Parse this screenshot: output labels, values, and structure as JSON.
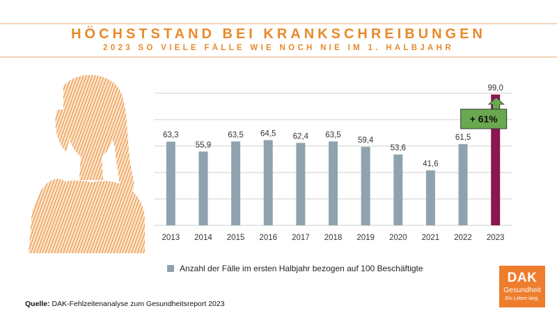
{
  "header": {
    "title": "HÖCHSTSTAND BEI KRANKSCHREIBUNGEN",
    "subtitle": "2023 SO VIELE FÄLLE WIE NOCH NIE IM 1. HALBJAHR"
  },
  "chart_data": {
    "type": "bar",
    "categories": [
      "2013",
      "2014",
      "2015",
      "2016",
      "2017",
      "2018",
      "2019",
      "2020",
      "2021",
      "2022",
      "2023"
    ],
    "values": [
      63.3,
      55.9,
      63.5,
      64.5,
      62.4,
      63.5,
      59.4,
      53.6,
      41.6,
      61.5,
      99.0
    ],
    "value_labels": [
      "63,3",
      "55,9",
      "63,5",
      "64,5",
      "62,4",
      "63,5",
      "59,4",
      "53,6",
      "41,6",
      "61,5",
      "99,0"
    ],
    "series": [
      {
        "name": "Anzahl der Fälle im ersten Halbjahr bezogen auf 100 Beschäftigte",
        "values": [
          63.3,
          55.9,
          63.5,
          64.5,
          62.4,
          63.5,
          59.4,
          53.6,
          41.6,
          61.5,
          99.0
        ]
      }
    ],
    "highlight_index": 10,
    "annotation": "+ 61%",
    "ylim": [
      0,
      100
    ],
    "grid": true,
    "colors": {
      "bar": "#8ea3ad",
      "highlight": "#8c1650",
      "annotation_bg": "#6aa84f",
      "grid": "#cfcfcf"
    }
  },
  "legend": {
    "label": "Anzahl der Fälle im ersten Halbjahr bezogen auf 100 Beschäftigte"
  },
  "source": {
    "label": "Quelle:",
    "text": " DAK-Fehlzeitenanalyse zum Gesundheitsreport 2023"
  },
  "logo": {
    "name": "DAK",
    "sub": "Gesundheit",
    "tagline": "Ein Leben lang."
  },
  "illustration": {
    "icon": "woman-headache-icon",
    "color": "#e8892b"
  }
}
